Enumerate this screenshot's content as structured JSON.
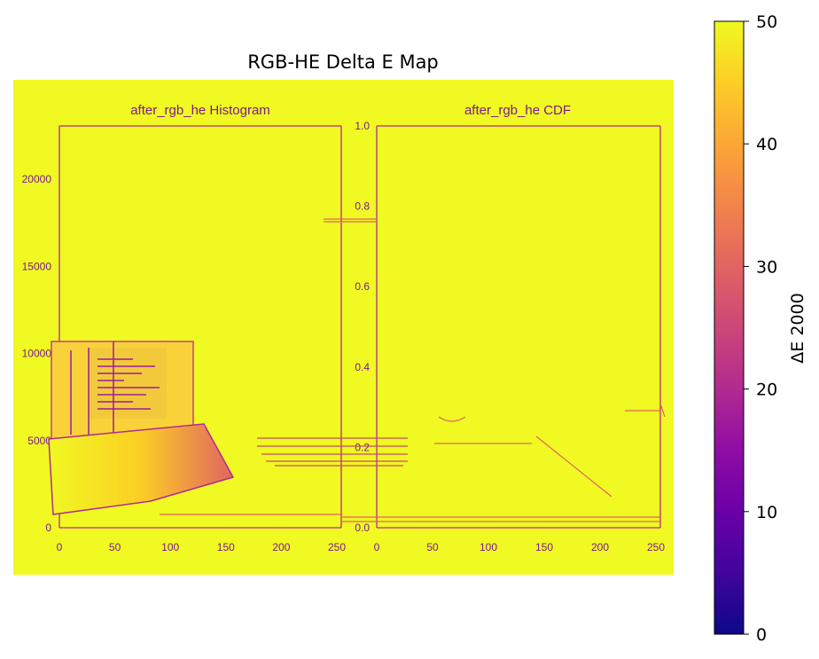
{
  "chart_data": {
    "type": "heatmap",
    "title": "RGB-HE Delta E Map",
    "colormap": "plasma",
    "colorbar": {
      "label": "ΔE 2000",
      "range": [
        0,
        50
      ],
      "ticks": [
        "0",
        "10",
        "20",
        "30",
        "40",
        "50"
      ]
    },
    "grid": false,
    "embedded_content": {
      "left_panel": {
        "title": "after_rgb_he Histogram",
        "y_ticks": [
          "0",
          "5000",
          "10000",
          "15000",
          "20000"
        ],
        "x_ticks": [
          "0",
          "50",
          "100",
          "150",
          "200",
          "250"
        ]
      },
      "right_panel": {
        "title": "after_rgb_he CDF",
        "y_ticks": [
          "0.0",
          "0.2",
          "0.4",
          "0.6",
          "0.8",
          "1.0"
        ],
        "x_ticks": [
          "0",
          "50",
          "100",
          "150",
          "200",
          "250"
        ]
      }
    }
  },
  "colors": {
    "high": "#f0f921",
    "low": "#0d0887",
    "mid": "#cc4778"
  }
}
